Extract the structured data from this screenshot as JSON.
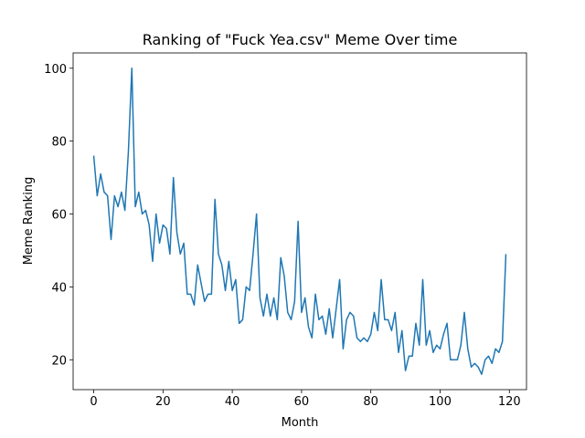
{
  "chart_data": {
    "type": "line",
    "title": "Ranking of \"Fuck Yea.csv\" Meme Over time",
    "x_label": "Month",
    "y_label": "Meme Ranking",
    "x": [
      0,
      1,
      2,
      3,
      4,
      5,
      6,
      7,
      8,
      9,
      10,
      11,
      12,
      13,
      14,
      15,
      16,
      17,
      18,
      19,
      20,
      21,
      22,
      23,
      24,
      25,
      26,
      27,
      28,
      29,
      30,
      31,
      32,
      33,
      34,
      35,
      36,
      37,
      38,
      39,
      40,
      41,
      42,
      43,
      44,
      45,
      46,
      47,
      48,
      49,
      50,
      51,
      52,
      53,
      54,
      55,
      56,
      57,
      58,
      59,
      60,
      61,
      62,
      63,
      64,
      65,
      66,
      67,
      68,
      69,
      70,
      71,
      72,
      73,
      74,
      75,
      76,
      77,
      78,
      79,
      80,
      81,
      82,
      83,
      84,
      85,
      86,
      87,
      88,
      89,
      90,
      91,
      92,
      93,
      94,
      95,
      96,
      97,
      98,
      99,
      100,
      101,
      102,
      103,
      104,
      105,
      106,
      107,
      108,
      109,
      110,
      111,
      112,
      113,
      114,
      115,
      116,
      117,
      118,
      119
    ],
    "series": [
      {
        "name": "Meme Ranking",
        "color": "#1f77b4",
        "values": [
          76,
          65,
          71,
          66,
          65,
          53,
          65,
          62,
          66,
          61,
          77,
          100,
          62,
          66,
          60,
          61,
          57,
          47,
          60,
          52,
          57,
          56,
          49,
          70,
          55,
          49,
          52,
          38,
          38,
          35,
          46,
          41,
          36,
          38,
          38,
          64,
          49,
          46,
          39,
          47,
          39,
          42,
          30,
          31,
          40,
          39,
          49,
          60,
          37,
          32,
          38,
          32,
          37,
          31,
          48,
          43,
          33,
          31,
          36,
          58,
          33,
          37,
          29,
          26,
          38,
          31,
          32,
          27,
          34,
          26,
          34,
          42,
          23,
          31,
          33,
          32,
          26,
          25,
          26,
          25,
          27,
          33,
          28,
          42,
          31,
          31,
          28,
          33,
          22,
          28,
          17,
          21,
          21,
          30,
          24,
          42,
          24,
          28,
          22,
          24,
          23,
          27,
          30,
          20,
          20,
          20,
          24,
          33,
          23,
          18,
          19,
          18,
          16,
          20,
          21,
          19,
          23,
          22,
          25,
          49
        ]
      }
    ],
    "xlim": [
      -5.95,
      124.95
    ],
    "ylim": [
      11.8,
      104.2
    ],
    "xticks": [
      0,
      20,
      40,
      60,
      80,
      100,
      120
    ],
    "yticks": [
      20,
      40,
      60,
      80,
      100
    ]
  }
}
